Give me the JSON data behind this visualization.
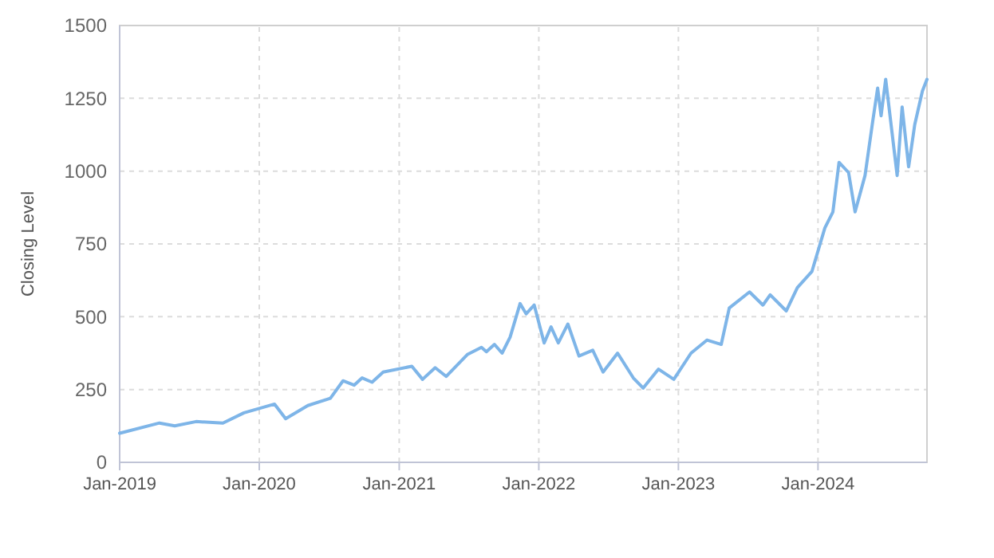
{
  "chart_data": {
    "type": "line",
    "ylabel": "Closing Level",
    "x": [
      "2019-01-01",
      "2019-04-15",
      "2019-05-25",
      "2019-07-20",
      "2019-09-28",
      "2019-11-22",
      "2020-02-10",
      "2020-03-10",
      "2020-05-07",
      "2020-07-05",
      "2020-08-07",
      "2020-09-05",
      "2020-09-26",
      "2020-10-22",
      "2020-11-20",
      "2021-02-03",
      "2021-03-03",
      "2021-04-05",
      "2021-05-04",
      "2021-06-28",
      "2021-08-04",
      "2021-08-17",
      "2021-09-07",
      "2021-09-27",
      "2021-10-18",
      "2021-11-13",
      "2021-11-29",
      "2021-12-20",
      "2022-01-15",
      "2022-02-02",
      "2022-02-21",
      "2022-03-18",
      "2022-04-16",
      "2022-05-22",
      "2022-06-18",
      "2022-07-26",
      "2022-09-05",
      "2022-10-01",
      "2022-11-10",
      "2022-12-20",
      "2023-02-03",
      "2023-03-17",
      "2023-04-23",
      "2023-05-14",
      "2023-07-06",
      "2023-08-10",
      "2023-08-29",
      "2023-10-10",
      "2023-11-08",
      "2023-12-16",
      "2024-01-19",
      "2024-02-09",
      "2024-02-25",
      "2024-03-21",
      "2024-04-07",
      "2024-05-03",
      "2024-05-23",
      "2024-06-05",
      "2024-06-14",
      "2024-06-26",
      "2024-07-26",
      "2024-08-08",
      "2024-08-25",
      "2024-09-10",
      "2024-09-30",
      "2024-10-12"
    ],
    "series": [
      {
        "color": "#7eb5e8",
        "values": [
          100,
          135,
          125,
          140,
          135,
          170,
          200,
          150,
          195,
          220,
          280,
          265,
          290,
          275,
          310,
          330,
          285,
          325,
          295,
          370,
          395,
          380,
          405,
          375,
          430,
          545,
          510,
          540,
          410,
          465,
          410,
          475,
          365,
          385,
          310,
          375,
          290,
          255,
          320,
          285,
          375,
          420,
          405,
          530,
          585,
          540,
          575,
          520,
          600,
          655,
          805,
          860,
          1030,
          995,
          860,
          985,
          1170,
          1285,
          1190,
          1315,
          985,
          1220,
          1015,
          1160,
          1275,
          1315
        ]
      }
    ],
    "xlim": [
      "2019-01-01",
      "2024-10-12"
    ],
    "xticks": [
      {
        "value": "2019-01-01",
        "label": "Jan-2019"
      },
      {
        "value": "2020-01-01",
        "label": "Jan-2020"
      },
      {
        "value": "2021-01-01",
        "label": "Jan-2021"
      },
      {
        "value": "2022-01-01",
        "label": "Jan-2022"
      },
      {
        "value": "2023-01-01",
        "label": "Jan-2023"
      },
      {
        "value": "2024-01-01",
        "label": "Jan-2024"
      }
    ],
    "ylim": [
      0,
      1500
    ],
    "yticks": [
      0,
      250,
      500,
      750,
      1000,
      1250,
      1500
    ],
    "grid": true,
    "marker": "none",
    "line_style": "solid"
  }
}
